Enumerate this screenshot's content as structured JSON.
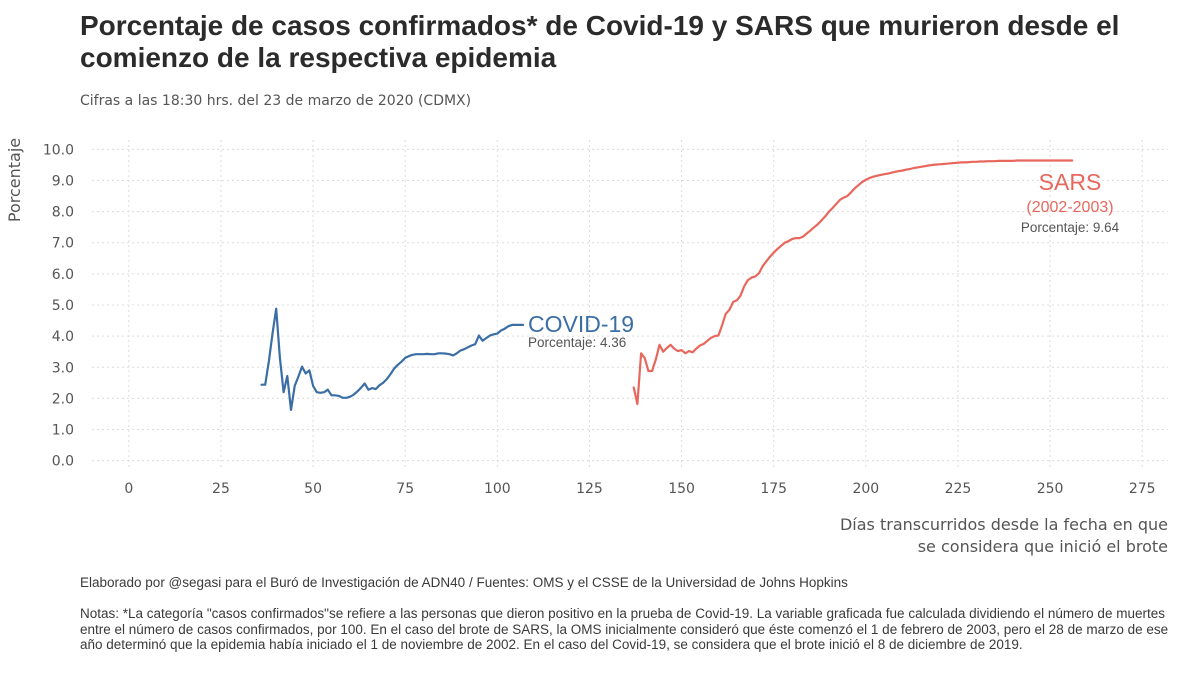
{
  "title": "Porcentaje de casos confirmados* de Covid-19 y SARS que murieron desde el comienzo de la respectiva epidemia",
  "subtitle": "Cifras a las 18:30 hrs. del 23 de marzo de 2020 (CDMX)",
  "caption": "Elaborado por @segasi para el Buró de Investigación de ADN40 / Fuentes: OMS y el CSSE de la Universidad de Johns Hopkins",
  "notes": "Notas: *La categoría \"casos confirmados\"se refiere a las personas que dieron positivo en la prueba de Covid-19. La variable graficada fue calculada dividiendo el número de muertes entre el número de casos confirmados, por 100. En el caso del brote de SARS, la OMS inicialmente consideró que éste comenzó el 1 de febrero de 2003, pero el 28 de marzo de ese año determinó que la epidemia había iniciado el 1 de noviembre de 2002. En el caso del Covid-19, se considera que el brote inició el 8 de diciembre de 2019.",
  "colors": {
    "covid": "#3a6ea5",
    "sars": "#e8675c",
    "grid": "#dcdcdc",
    "text": "#555555"
  },
  "chart_data": {
    "type": "line",
    "ylabel": "Porcentaje",
    "xlabel_line1": "Días transcurridos desde la fecha en que",
    "xlabel_line2": "se considera que inició el brote",
    "xlim": [
      -10,
      282
    ],
    "ylim": [
      -0.3,
      10.3
    ],
    "xticks": [
      0,
      25,
      50,
      75,
      100,
      125,
      150,
      175,
      200,
      225,
      250,
      275
    ],
    "yticks": [
      0,
      1,
      2,
      3,
      4,
      5,
      6,
      7,
      8,
      9,
      10
    ],
    "ytick_labels": [
      "0.0",
      "1.0",
      "2.0",
      "3.0",
      "4.0",
      "5.0",
      "6.0",
      "7.0",
      "8.0",
      "9.0",
      "10.0"
    ],
    "grid": true,
    "series": [
      {
        "name": "COVID-19",
        "label": "COVID-19",
        "value_label": "Porcentaje: 4.36",
        "x": [
          36,
          37,
          38,
          39,
          40,
          41,
          42,
          43,
          44,
          45,
          46,
          47,
          48,
          49,
          50,
          51,
          52,
          53,
          54,
          55,
          56,
          57,
          58,
          59,
          60,
          61,
          62,
          63,
          64,
          65,
          66,
          67,
          68,
          69,
          70,
          71,
          72,
          73,
          74,
          75,
          76,
          77,
          78,
          79,
          80,
          81,
          82,
          83,
          84,
          85,
          86,
          87,
          88,
          89,
          90,
          91,
          92,
          93,
          94,
          95,
          96,
          97,
          98,
          99,
          100,
          101,
          102,
          103,
          104,
          105,
          106,
          107
        ],
        "values": [
          2.44,
          2.44,
          3.2,
          4.1,
          4.88,
          3.3,
          2.2,
          2.72,
          1.63,
          2.4,
          2.7,
          3.02,
          2.8,
          2.9,
          2.4,
          2.2,
          2.18,
          2.2,
          2.28,
          2.1,
          2.1,
          2.08,
          2.02,
          2.02,
          2.05,
          2.12,
          2.22,
          2.34,
          2.48,
          2.28,
          2.33,
          2.3,
          2.42,
          2.5,
          2.62,
          2.78,
          2.96,
          3.08,
          3.18,
          3.3,
          3.36,
          3.4,
          3.42,
          3.42,
          3.42,
          3.43,
          3.42,
          3.42,
          3.45,
          3.45,
          3.44,
          3.42,
          3.38,
          3.45,
          3.54,
          3.58,
          3.64,
          3.7,
          3.74,
          4.02,
          3.85,
          3.94,
          4.02,
          4.06,
          4.08,
          4.18,
          4.24,
          4.32,
          4.36,
          4.36,
          4.36,
          4.36
        ]
      },
      {
        "name": "SARS",
        "label": "SARS",
        "sublabel": "(2002-2003)",
        "value_label": "Porcentaje: 9.64",
        "x": [
          137,
          138,
          139,
          140,
          141,
          142,
          143,
          144,
          145,
          146,
          147,
          148,
          149,
          150,
          151,
          152,
          153,
          154,
          155,
          156,
          157,
          158,
          159,
          160,
          161,
          162,
          163,
          164,
          165,
          166,
          167,
          168,
          169,
          170,
          171,
          172,
          173,
          174,
          175,
          176,
          177,
          178,
          179,
          180,
          181,
          182,
          183,
          184,
          185,
          186,
          187,
          188,
          189,
          190,
          191,
          192,
          193,
          194,
          195,
          196,
          197,
          198,
          199,
          200,
          201,
          202,
          203,
          204,
          205,
          206,
          207,
          208,
          209,
          210,
          211,
          212,
          213,
          214,
          215,
          216,
          217,
          218,
          219,
          220,
          221,
          222,
          223,
          224,
          225,
          226,
          227,
          228,
          229,
          230,
          231,
          232,
          233,
          234,
          235,
          236,
          237,
          238,
          239,
          240,
          241,
          242,
          243,
          244,
          245,
          246,
          247,
          248,
          249,
          250,
          251,
          252,
          253,
          254,
          255,
          256
        ],
        "values": [
          2.35,
          1.82,
          3.45,
          3.3,
          2.88,
          2.88,
          3.25,
          3.72,
          3.5,
          3.62,
          3.72,
          3.6,
          3.52,
          3.55,
          3.45,
          3.52,
          3.48,
          3.6,
          3.7,
          3.75,
          3.85,
          3.95,
          4.0,
          4.02,
          4.35,
          4.72,
          4.85,
          5.1,
          5.15,
          5.3,
          5.6,
          5.8,
          5.88,
          5.92,
          6.02,
          6.25,
          6.4,
          6.55,
          6.68,
          6.8,
          6.9,
          7.0,
          7.05,
          7.12,
          7.15,
          7.15,
          7.2,
          7.3,
          7.4,
          7.5,
          7.6,
          7.72,
          7.85,
          8.0,
          8.12,
          8.25,
          8.38,
          8.45,
          8.5,
          8.62,
          8.75,
          8.85,
          8.95,
          9.02,
          9.08,
          9.12,
          9.15,
          9.18,
          9.2,
          9.22,
          9.25,
          9.28,
          9.3,
          9.32,
          9.35,
          9.37,
          9.4,
          9.42,
          9.44,
          9.46,
          9.48,
          9.5,
          9.51,
          9.52,
          9.53,
          9.54,
          9.55,
          9.56,
          9.57,
          9.58,
          9.58,
          9.59,
          9.6,
          9.6,
          9.61,
          9.61,
          9.62,
          9.62,
          9.62,
          9.63,
          9.63,
          9.63,
          9.63,
          9.63,
          9.64,
          9.64,
          9.64,
          9.64,
          9.64,
          9.64,
          9.64,
          9.64,
          9.64,
          9.64,
          9.64,
          9.64,
          9.64,
          9.64,
          9.64,
          9.64
        ]
      }
    ]
  }
}
